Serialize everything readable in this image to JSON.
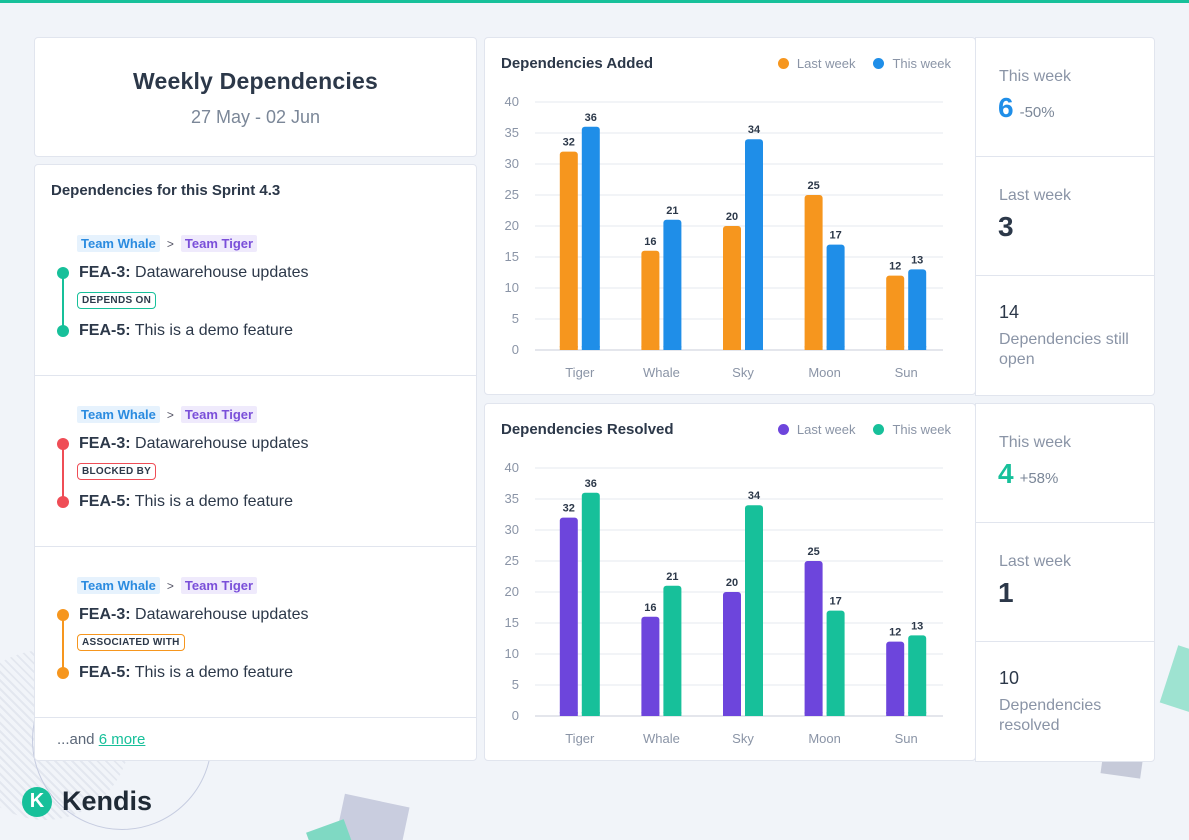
{
  "header": {
    "title": "Weekly Dependencies",
    "date_range": "27 May - 02 Jun"
  },
  "sprint": {
    "title": "Dependencies for this Sprint 4.3",
    "items": [
      {
        "team_from": "Team Whale",
        "separator": ">",
        "team_to": "Team Tiger",
        "source_id": "FEA-3:",
        "source_name": "Datawarehouse updates",
        "relation": "DEPENDS ON",
        "relation_color": "#17c09a",
        "target_id": "FEA-5:",
        "target_name": "This is a demo feature"
      },
      {
        "team_from": "Team Whale",
        "separator": ">",
        "team_to": "Team Tiger",
        "source_id": "FEA-3:",
        "source_name": "Datawarehouse updates",
        "relation": "BLOCKED BY",
        "relation_color": "#ef4d56",
        "target_id": "FEA-5:",
        "target_name": "This is a demo feature"
      },
      {
        "team_from": "Team Whale",
        "separator": ">",
        "team_to": "Team Tiger",
        "source_id": "FEA-3:",
        "source_name": "Datawarehouse updates",
        "relation": "ASSOCIATED WITH",
        "relation_color": "#f6961e",
        "target_id": "FEA-5:",
        "target_name": "This is a demo feature"
      }
    ],
    "more_prefix": "...and ",
    "more_link": "6 more"
  },
  "chart_data": [
    {
      "type": "bar",
      "title": "Dependencies Added",
      "categories": [
        "Tiger",
        "Whale",
        "Sky",
        "Moon",
        "Sun"
      ],
      "series": [
        {
          "name": "Last week",
          "color": "#f6961e",
          "values": [
            32,
            16,
            20,
            25,
            12
          ]
        },
        {
          "name": "This week",
          "color": "#1f8ee8",
          "values": [
            36,
            21,
            34,
            17,
            13
          ]
        }
      ],
      "yticks": [
        0,
        5,
        10,
        15,
        20,
        25,
        30,
        35,
        40
      ],
      "ylim": [
        0,
        40
      ],
      "grid": true,
      "legend": "top-right"
    },
    {
      "type": "bar",
      "title": "Dependencies Resolved",
      "categories": [
        "Tiger",
        "Whale",
        "Sky",
        "Moon",
        "Sun"
      ],
      "series": [
        {
          "name": "Last week",
          "color": "#6d45dc",
          "values": [
            32,
            16,
            20,
            25,
            12
          ]
        },
        {
          "name": "This week",
          "color": "#17c09a",
          "values": [
            36,
            21,
            34,
            17,
            13
          ]
        }
      ],
      "yticks": [
        0,
        5,
        10,
        15,
        20,
        25,
        30,
        35,
        40
      ],
      "ylim": [
        0,
        40
      ],
      "grid": true,
      "legend": "top-right"
    }
  ],
  "stats": {
    "added": {
      "this_week_label": "This week",
      "this_week_value": "6",
      "this_week_change": "-50%",
      "accent": "#1f8ee8",
      "last_week_label": "Last week",
      "last_week_value": "3",
      "open_value": "14",
      "open_label": "Dependencies still open"
    },
    "resolved": {
      "this_week_label": "This week",
      "this_week_value": "4",
      "this_week_change": "+58%",
      "accent": "#17c09a",
      "last_week_label": "Last week",
      "last_week_value": "1",
      "resolved_value": "10",
      "resolved_label": "Dependencies resolved"
    }
  },
  "logo": {
    "mark": "K",
    "name": "Kendis"
  }
}
